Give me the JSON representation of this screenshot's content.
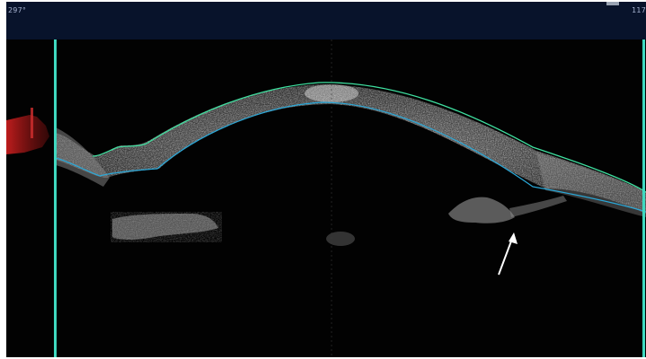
{
  "scan": {
    "angle_left": "297°",
    "angle_right": "117"
  },
  "colors": {
    "background": "#020202",
    "top_band": "#08132b",
    "anterior_boundary": "#3fe0a0",
    "posterior_boundary": "#2aa8d8",
    "scan_limit_line": "#3fd9c0",
    "arrow": "#ffffff",
    "limbus_overlay": "#c81e1e"
  },
  "icons": [
    "arrow-icon"
  ]
}
